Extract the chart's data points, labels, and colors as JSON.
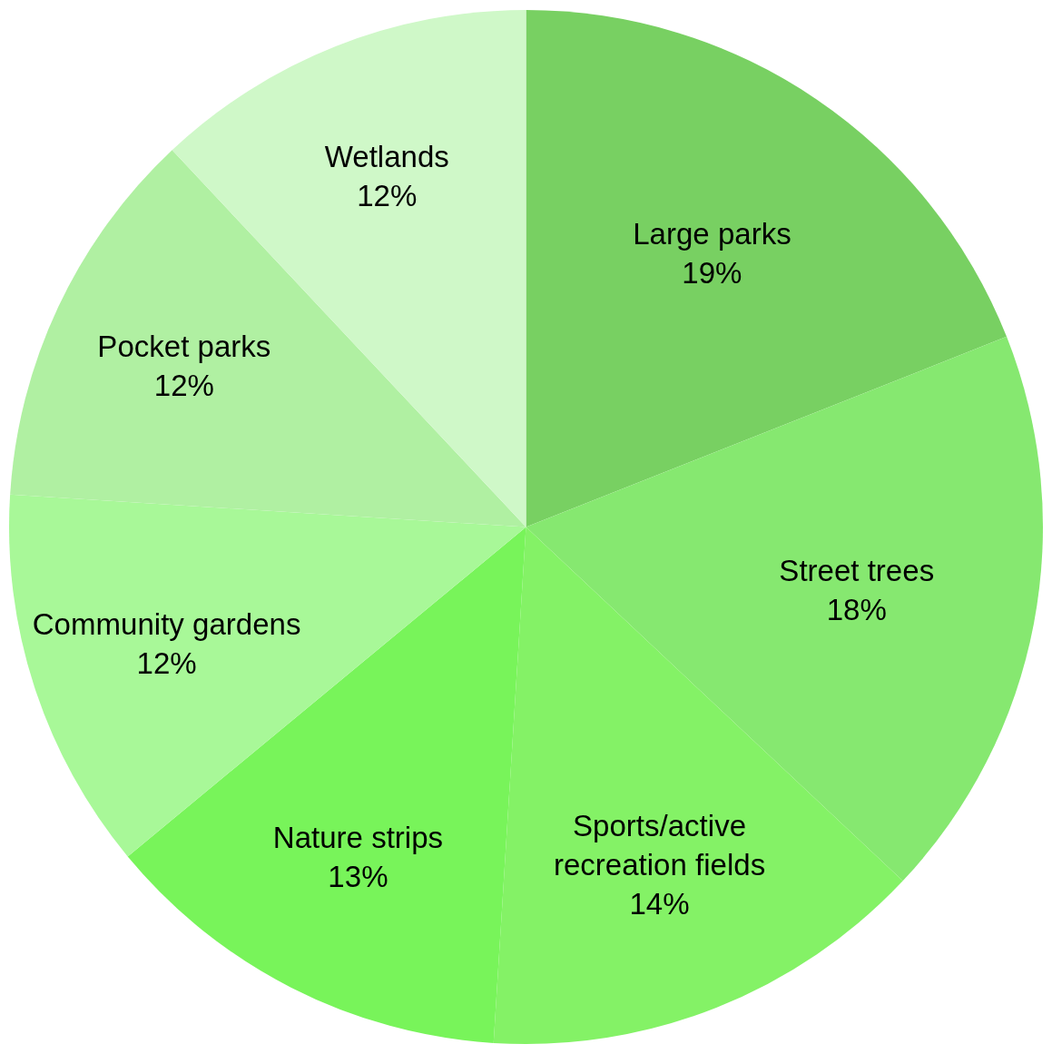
{
  "chart_data": {
    "type": "pie",
    "categories": [
      "Large parks",
      "Street trees",
      "Sports/active\nrecreation fields",
      "Nature strips",
      "Community gardens",
      "Pocket parks",
      "Wetlands"
    ],
    "values": [
      19,
      18,
      14,
      13,
      12,
      12,
      12
    ],
    "value_labels": [
      "19%",
      "18%",
      "14%",
      "13%",
      "12%",
      "12%",
      "12%"
    ],
    "colors": [
      "#78d062",
      "#86e870",
      "#84f266",
      "#78f45a",
      "#a8f898",
      "#b0f0a2",
      "#cff8c8"
    ],
    "legend": false
  }
}
